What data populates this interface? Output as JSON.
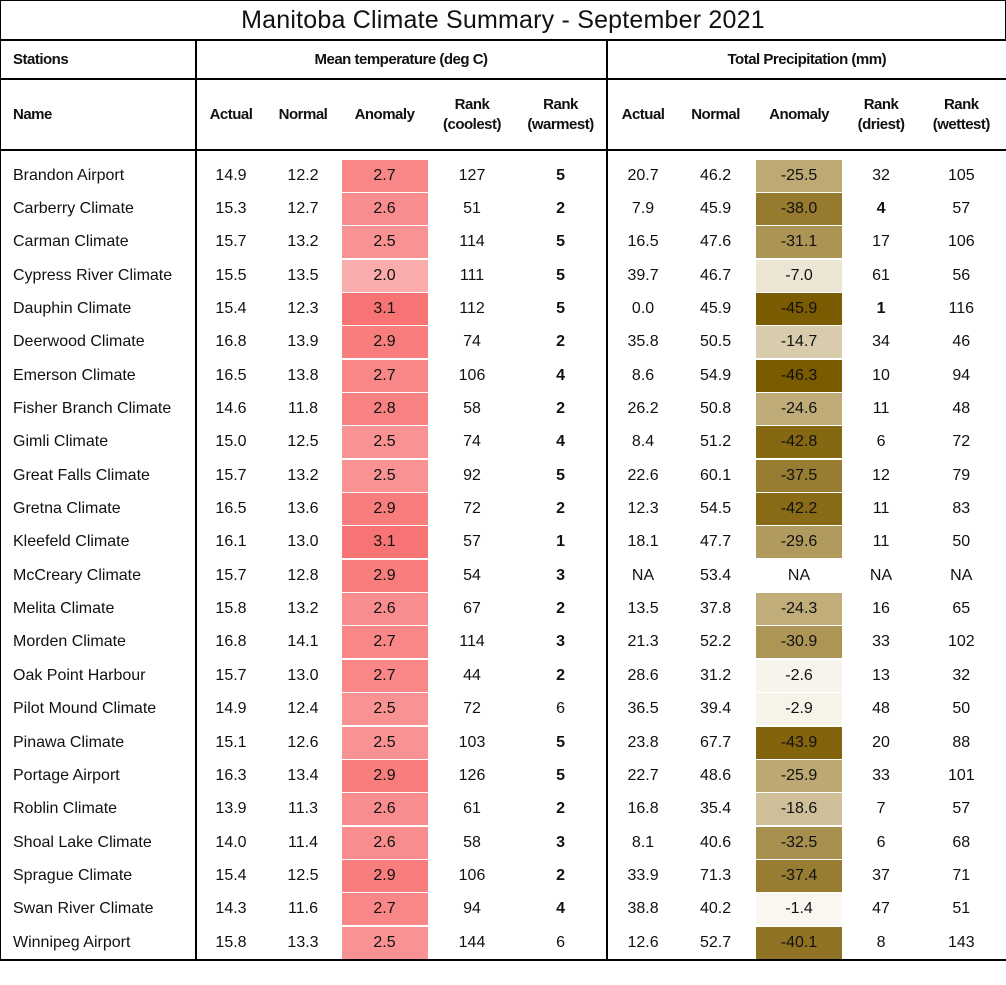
{
  "title": "Manitoba Climate Summary - September 2021",
  "group_headers": {
    "stations": "Stations",
    "temperature": "Mean temperature (deg C)",
    "precipitation": "Total Precipitation (mm)"
  },
  "columns": {
    "name": "Name",
    "t_actual": "Actual",
    "t_normal": "Normal",
    "t_anomaly": "Anomaly",
    "t_rank_cool": [
      "Rank",
      "(coolest)"
    ],
    "t_rank_warm": [
      "Rank",
      "(warmest)"
    ],
    "p_actual": "Actual",
    "p_normal": "Normal",
    "p_anomaly": "Anomaly",
    "p_rank_dry": [
      "Rank",
      "(driest)"
    ],
    "p_rank_wet": [
      "Rank",
      "(wettest)"
    ]
  },
  "colors": {
    "temp_low": "#fbd4d4",
    "temp_high": "#f87373",
    "precip_dry": "#7b5b00",
    "precip_mid": "#bea974",
    "precip_wet": "#fdfcf8"
  },
  "rows": [
    {
      "name": "Brandon Airport",
      "t_actual": "14.9",
      "t_normal": "12.2",
      "t_anomaly": "2.7",
      "t_rank_cool": "127",
      "t_rank_warm": "5",
      "t_warm_bold": true,
      "p_actual": "20.7",
      "p_normal": "46.2",
      "p_anomaly": "-25.5",
      "p_rank_dry": "32",
      "p_dry_bold": false,
      "p_rank_wet": "105"
    },
    {
      "name": "Carberry Climate",
      "t_actual": "15.3",
      "t_normal": "12.7",
      "t_anomaly": "2.6",
      "t_rank_cool": "51",
      "t_rank_warm": "2",
      "t_warm_bold": true,
      "p_actual": "7.9",
      "p_normal": "45.9",
      "p_anomaly": "-38.0",
      "p_rank_dry": "4",
      "p_dry_bold": true,
      "p_rank_wet": "57"
    },
    {
      "name": "Carman Climate",
      "t_actual": "15.7",
      "t_normal": "13.2",
      "t_anomaly": "2.5",
      "t_rank_cool": "114",
      "t_rank_warm": "5",
      "t_warm_bold": true,
      "p_actual": "16.5",
      "p_normal": "47.6",
      "p_anomaly": "-31.1",
      "p_rank_dry": "17",
      "p_dry_bold": false,
      "p_rank_wet": "106"
    },
    {
      "name": "Cypress River Climate",
      "t_actual": "15.5",
      "t_normal": "13.5",
      "t_anomaly": "2.0",
      "t_rank_cool": "111",
      "t_rank_warm": "5",
      "t_warm_bold": true,
      "p_actual": "39.7",
      "p_normal": "46.7",
      "p_anomaly": "-7.0",
      "p_rank_dry": "61",
      "p_dry_bold": false,
      "p_rank_wet": "56"
    },
    {
      "name": "Dauphin Climate",
      "t_actual": "15.4",
      "t_normal": "12.3",
      "t_anomaly": "3.1",
      "t_rank_cool": "112",
      "t_rank_warm": "5",
      "t_warm_bold": true,
      "p_actual": "0.0",
      "p_normal": "45.9",
      "p_anomaly": "-45.9",
      "p_rank_dry": "1",
      "p_dry_bold": true,
      "p_rank_wet": "116"
    },
    {
      "name": "Deerwood Climate",
      "t_actual": "16.8",
      "t_normal": "13.9",
      "t_anomaly": "2.9",
      "t_rank_cool": "74",
      "t_rank_warm": "2",
      "t_warm_bold": true,
      "p_actual": "35.8",
      "p_normal": "50.5",
      "p_anomaly": "-14.7",
      "p_rank_dry": "34",
      "p_dry_bold": false,
      "p_rank_wet": "46"
    },
    {
      "name": "Emerson Climate",
      "t_actual": "16.5",
      "t_normal": "13.8",
      "t_anomaly": "2.7",
      "t_rank_cool": "106",
      "t_rank_warm": "4",
      "t_warm_bold": true,
      "p_actual": "8.6",
      "p_normal": "54.9",
      "p_anomaly": "-46.3",
      "p_rank_dry": "10",
      "p_dry_bold": false,
      "p_rank_wet": "94"
    },
    {
      "name": "Fisher Branch Climate",
      "t_actual": "14.6",
      "t_normal": "11.8",
      "t_anomaly": "2.8",
      "t_rank_cool": "58",
      "t_rank_warm": "2",
      "t_warm_bold": true,
      "p_actual": "26.2",
      "p_normal": "50.8",
      "p_anomaly": "-24.6",
      "p_rank_dry": "11",
      "p_dry_bold": false,
      "p_rank_wet": "48"
    },
    {
      "name": "Gimli Climate",
      "t_actual": "15.0",
      "t_normal": "12.5",
      "t_anomaly": "2.5",
      "t_rank_cool": "74",
      "t_rank_warm": "4",
      "t_warm_bold": true,
      "p_actual": "8.4",
      "p_normal": "51.2",
      "p_anomaly": "-42.8",
      "p_rank_dry": "6",
      "p_dry_bold": false,
      "p_rank_wet": "72"
    },
    {
      "name": "Great Falls Climate",
      "t_actual": "15.7",
      "t_normal": "13.2",
      "t_anomaly": "2.5",
      "t_rank_cool": "92",
      "t_rank_warm": "5",
      "t_warm_bold": true,
      "p_actual": "22.6",
      "p_normal": "60.1",
      "p_anomaly": "-37.5",
      "p_rank_dry": "12",
      "p_dry_bold": false,
      "p_rank_wet": "79"
    },
    {
      "name": "Gretna Climate",
      "t_actual": "16.5",
      "t_normal": "13.6",
      "t_anomaly": "2.9",
      "t_rank_cool": "72",
      "t_rank_warm": "2",
      "t_warm_bold": true,
      "p_actual": "12.3",
      "p_normal": "54.5",
      "p_anomaly": "-42.2",
      "p_rank_dry": "11",
      "p_dry_bold": false,
      "p_rank_wet": "83"
    },
    {
      "name": "Kleefeld Climate",
      "t_actual": "16.1",
      "t_normal": "13.0",
      "t_anomaly": "3.1",
      "t_rank_cool": "57",
      "t_rank_warm": "1",
      "t_warm_bold": true,
      "p_actual": "18.1",
      "p_normal": "47.7",
      "p_anomaly": "-29.6",
      "p_rank_dry": "11",
      "p_dry_bold": false,
      "p_rank_wet": "50"
    },
    {
      "name": "McCreary Climate",
      "t_actual": "15.7",
      "t_normal": "12.8",
      "t_anomaly": "2.9",
      "t_rank_cool": "54",
      "t_rank_warm": "3",
      "t_warm_bold": true,
      "p_actual": "NA",
      "p_normal": "53.4",
      "p_anomaly": "NA",
      "p_rank_dry": "NA",
      "p_dry_bold": false,
      "p_rank_wet": "NA"
    },
    {
      "name": "Melita Climate",
      "t_actual": "15.8",
      "t_normal": "13.2",
      "t_anomaly": "2.6",
      "t_rank_cool": "67",
      "t_rank_warm": "2",
      "t_warm_bold": true,
      "p_actual": "13.5",
      "p_normal": "37.8",
      "p_anomaly": "-24.3",
      "p_rank_dry": "16",
      "p_dry_bold": false,
      "p_rank_wet": "65"
    },
    {
      "name": "Morden Climate",
      "t_actual": "16.8",
      "t_normal": "14.1",
      "t_anomaly": "2.7",
      "t_rank_cool": "114",
      "t_rank_warm": "3",
      "t_warm_bold": true,
      "p_actual": "21.3",
      "p_normal": "52.2",
      "p_anomaly": "-30.9",
      "p_rank_dry": "33",
      "p_dry_bold": false,
      "p_rank_wet": "102"
    },
    {
      "name": "Oak Point Harbour",
      "t_actual": "15.7",
      "t_normal": "13.0",
      "t_anomaly": "2.7",
      "t_rank_cool": "44",
      "t_rank_warm": "2",
      "t_warm_bold": true,
      "p_actual": "28.6",
      "p_normal": "31.2",
      "p_anomaly": "-2.6",
      "p_rank_dry": "13",
      "p_dry_bold": false,
      "p_rank_wet": "32"
    },
    {
      "name": "Pilot Mound Climate",
      "t_actual": "14.9",
      "t_normal": "12.4",
      "t_anomaly": "2.5",
      "t_rank_cool": "72",
      "t_rank_warm": "6",
      "t_warm_bold": false,
      "p_actual": "36.5",
      "p_normal": "39.4",
      "p_anomaly": "-2.9",
      "p_rank_dry": "48",
      "p_dry_bold": false,
      "p_rank_wet": "50"
    },
    {
      "name": "Pinawa Climate",
      "t_actual": "15.1",
      "t_normal": "12.6",
      "t_anomaly": "2.5",
      "t_rank_cool": "103",
      "t_rank_warm": "5",
      "t_warm_bold": true,
      "p_actual": "23.8",
      "p_normal": "67.7",
      "p_anomaly": "-43.9",
      "p_rank_dry": "20",
      "p_dry_bold": false,
      "p_rank_wet": "88"
    },
    {
      "name": "Portage Airport",
      "t_actual": "16.3",
      "t_normal": "13.4",
      "t_anomaly": "2.9",
      "t_rank_cool": "126",
      "t_rank_warm": "5",
      "t_warm_bold": true,
      "p_actual": "22.7",
      "p_normal": "48.6",
      "p_anomaly": "-25.9",
      "p_rank_dry": "33",
      "p_dry_bold": false,
      "p_rank_wet": "101"
    },
    {
      "name": "Roblin Climate",
      "t_actual": "13.9",
      "t_normal": "11.3",
      "t_anomaly": "2.6",
      "t_rank_cool": "61",
      "t_rank_warm": "2",
      "t_warm_bold": true,
      "p_actual": "16.8",
      "p_normal": "35.4",
      "p_anomaly": "-18.6",
      "p_rank_dry": "7",
      "p_dry_bold": false,
      "p_rank_wet": "57"
    },
    {
      "name": "Shoal Lake Climate",
      "t_actual": "14.0",
      "t_normal": "11.4",
      "t_anomaly": "2.6",
      "t_rank_cool": "58",
      "t_rank_warm": "3",
      "t_warm_bold": true,
      "p_actual": "8.1",
      "p_normal": "40.6",
      "p_anomaly": "-32.5",
      "p_rank_dry": "6",
      "p_dry_bold": false,
      "p_rank_wet": "68"
    },
    {
      "name": "Sprague Climate",
      "t_actual": "15.4",
      "t_normal": "12.5",
      "t_anomaly": "2.9",
      "t_rank_cool": "106",
      "t_rank_warm": "2",
      "t_warm_bold": true,
      "p_actual": "33.9",
      "p_normal": "71.3",
      "p_anomaly": "-37.4",
      "p_rank_dry": "37",
      "p_dry_bold": false,
      "p_rank_wet": "71"
    },
    {
      "name": "Swan River Climate",
      "t_actual": "14.3",
      "t_normal": "11.6",
      "t_anomaly": "2.7",
      "t_rank_cool": "94",
      "t_rank_warm": "4",
      "t_warm_bold": true,
      "p_actual": "38.8",
      "p_normal": "40.2",
      "p_anomaly": "-1.4",
      "p_rank_dry": "47",
      "p_dry_bold": false,
      "p_rank_wet": "51"
    },
    {
      "name": "Winnipeg Airport",
      "t_actual": "15.8",
      "t_normal": "13.3",
      "t_anomaly": "2.5",
      "t_rank_cool": "144",
      "t_rank_warm": "6",
      "t_warm_bold": false,
      "p_actual": "12.6",
      "p_normal": "52.7",
      "p_anomaly": "-40.1",
      "p_rank_dry": "8",
      "p_dry_bold": false,
      "p_rank_wet": "143"
    }
  ]
}
